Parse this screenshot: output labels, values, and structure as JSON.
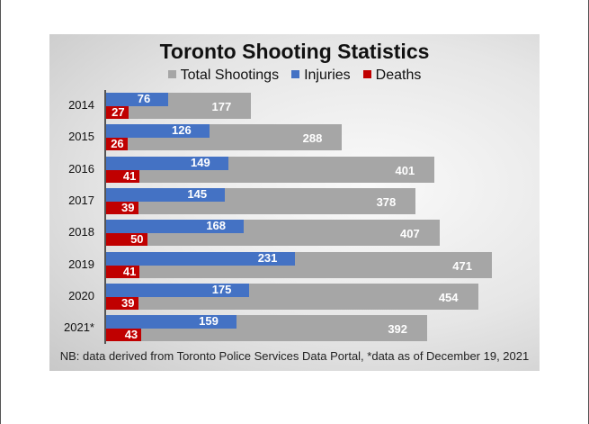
{
  "chart_data": {
    "type": "bar",
    "title": "Toronto Shooting Statistics",
    "categories": [
      "2014",
      "2015",
      "2016",
      "2017",
      "2018",
      "2019",
      "2020",
      "2021*"
    ],
    "series": [
      {
        "name": "Total Shootings",
        "color": "#a6a6a6",
        "values": [
          177,
          288,
          401,
          378,
          407,
          471,
          454,
          392
        ]
      },
      {
        "name": "Injuries",
        "color": "#4472c4",
        "values": [
          76,
          126,
          149,
          145,
          168,
          231,
          175,
          159
        ]
      },
      {
        "name": "Deaths",
        "color": "#c00000",
        "values": [
          27,
          26,
          41,
          39,
          50,
          41,
          39,
          43
        ]
      }
    ],
    "xlim": [
      0,
      471
    ],
    "legend": "top",
    "note": "NB: data derived from Toronto Police Services Data Portal, *data as of December 19, 2021"
  }
}
